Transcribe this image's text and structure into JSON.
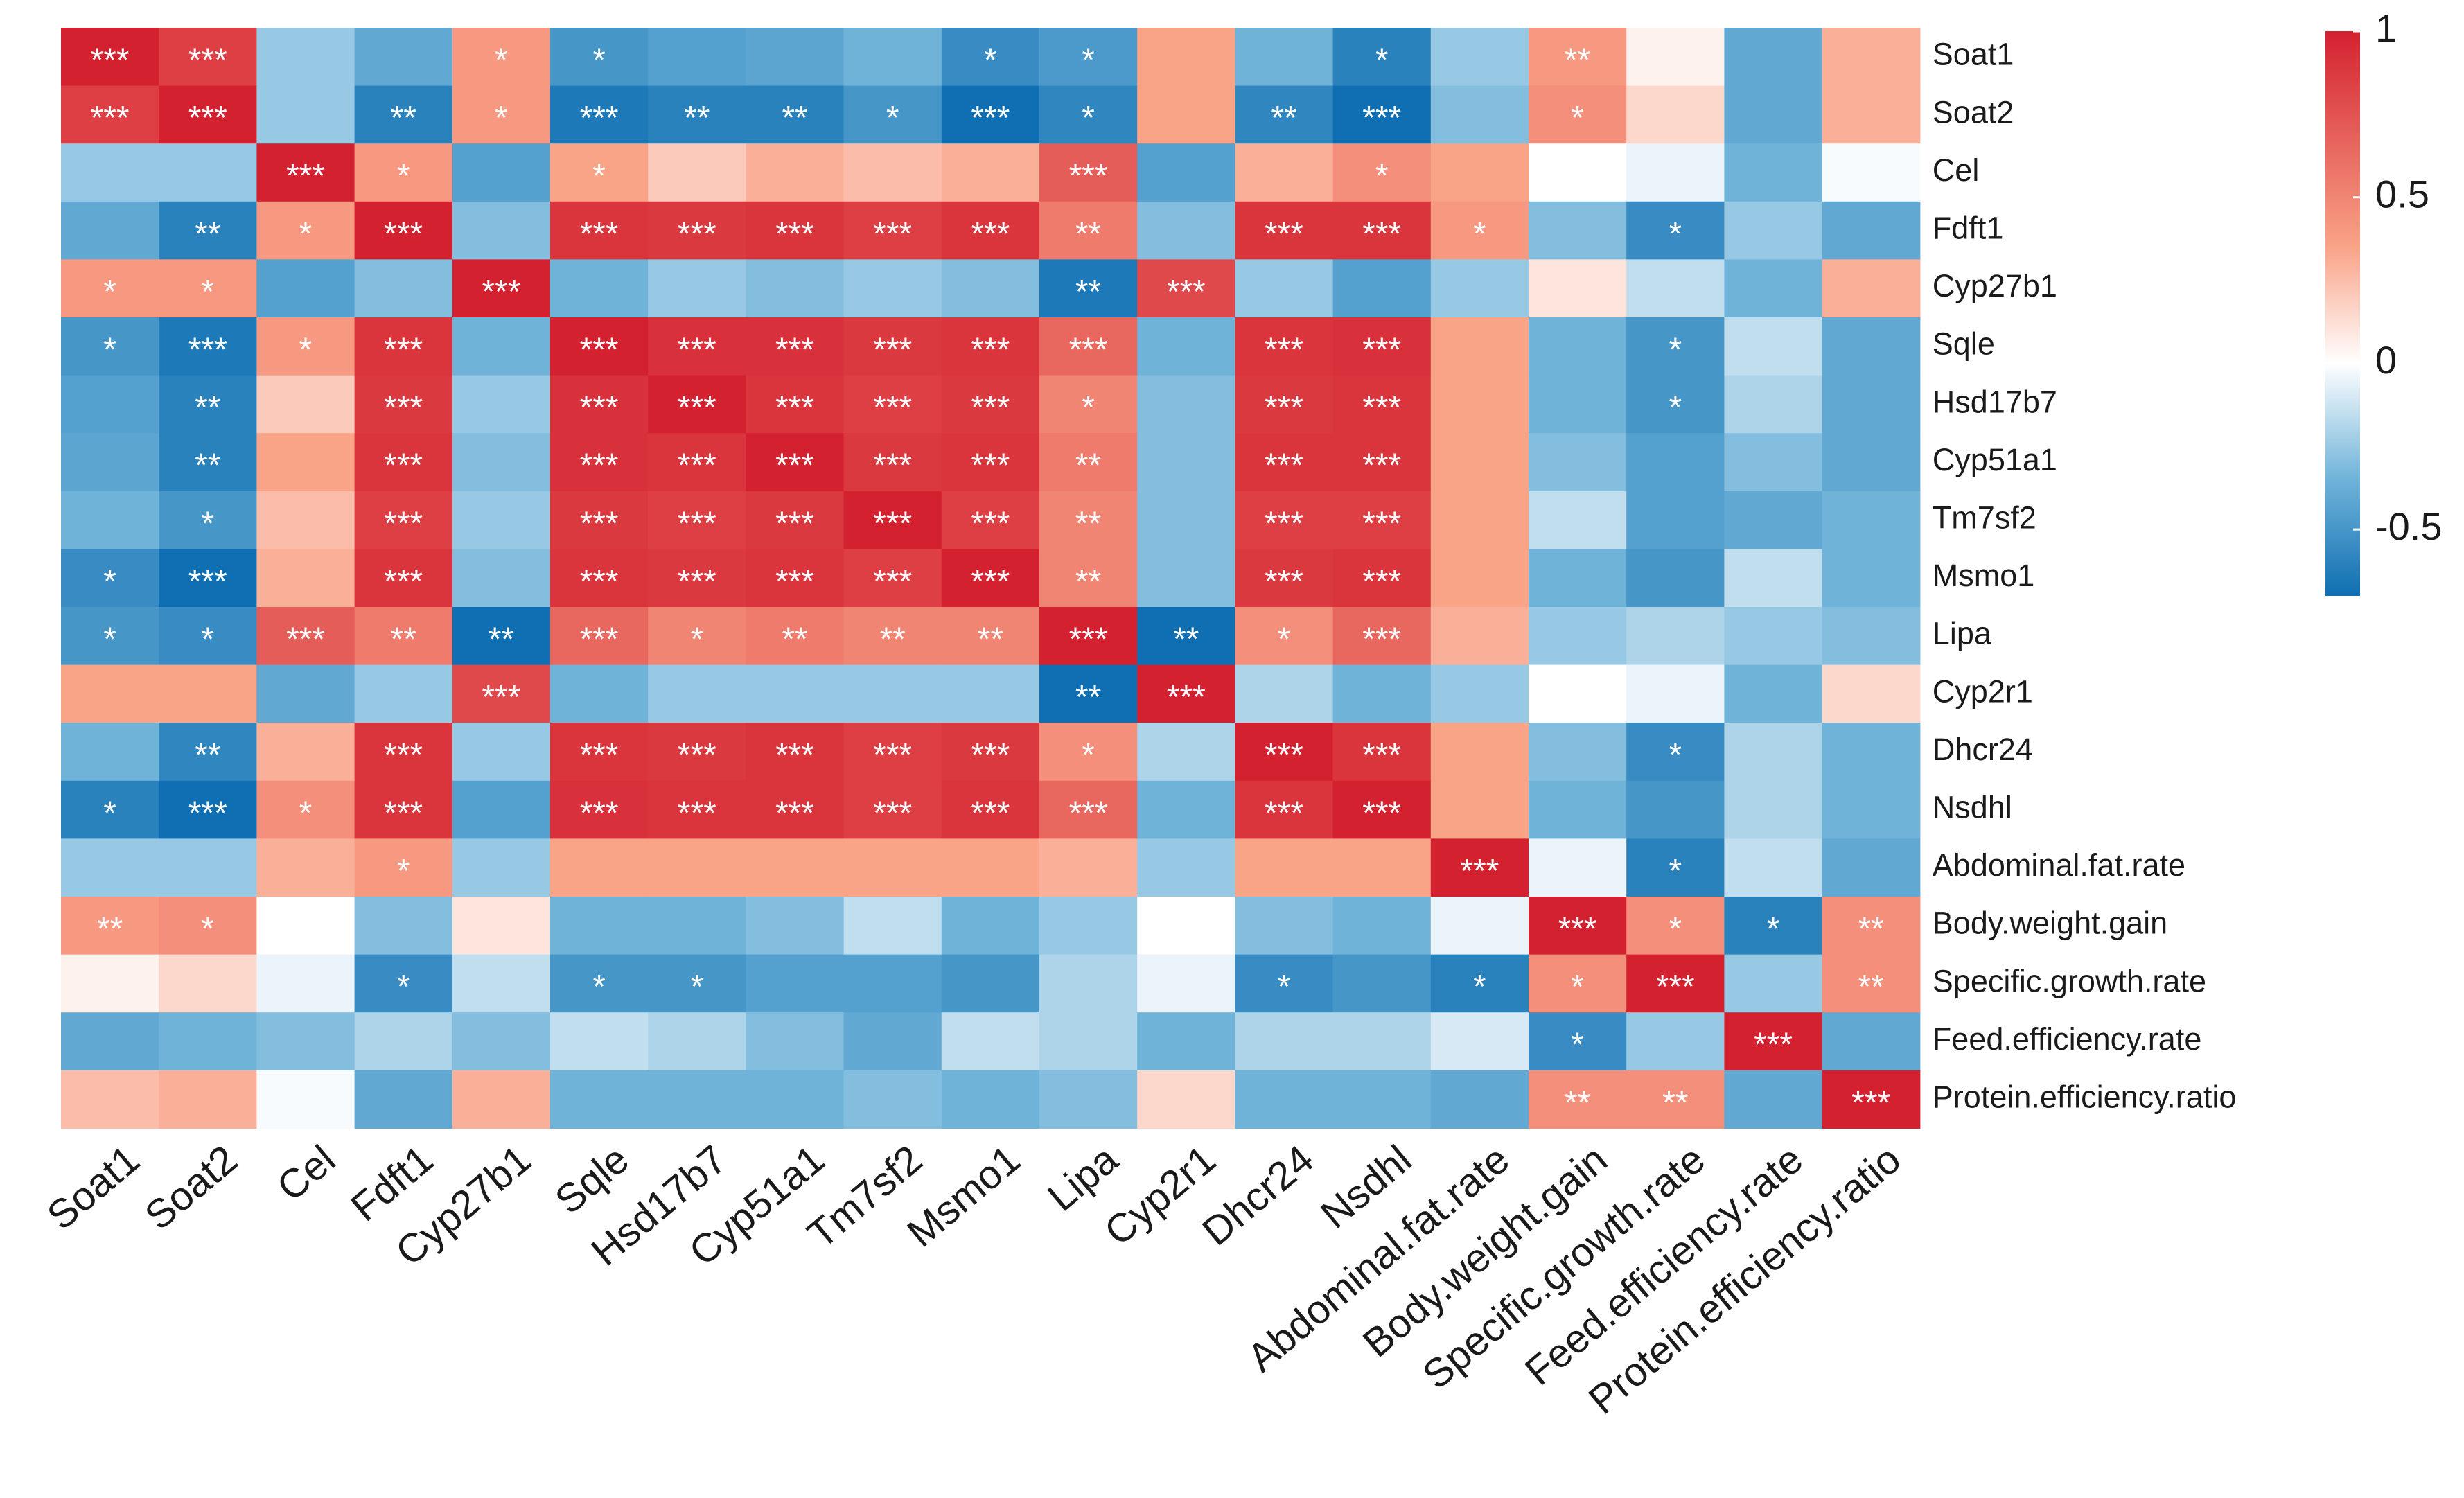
{
  "chart_data": {
    "type": "heatmap",
    "title": "",
    "rows": [
      "Soat1",
      "Soat2",
      "Cel",
      "Fdft1",
      "Cyp27b1",
      "Sqle",
      "Hsd17b7",
      "Cyp51a1",
      "Tm7sf2",
      "Msmo1",
      "Lipa",
      "Cyp2r1",
      "Dhcr24",
      "Nsdhl",
      "Abdominal.fat.rate",
      "Body.weight.gain",
      "Specific.growth.rate",
      "Feed.efficiency.rate",
      "Protein.efficiency.ratio"
    ],
    "columns": [
      "Soat1",
      "Soat2",
      "Cel",
      "Fdft1",
      "Cyp27b1",
      "Sqle",
      "Hsd17b7",
      "Cyp51a1",
      "Tm7sf2",
      "Msmo1",
      "Lipa",
      "Cyp2r1",
      "Dhcr24",
      "Nsdhl",
      "Abdominal.fat.rate",
      "Body.weight.gain",
      "Specific.growth.rate",
      "Feed.efficiency.rate",
      "Protein.efficiency.ratio"
    ],
    "values": [
      [
        1.0,
        0.85,
        -0.25,
        -0.4,
        0.4,
        -0.5,
        -0.45,
        -0.42,
        -0.35,
        -0.55,
        -0.48,
        0.35,
        -0.35,
        -0.6,
        -0.25,
        0.4,
        0.05,
        -0.4,
        0.3
      ],
      [
        0.85,
        1.0,
        -0.25,
        -0.6,
        0.4,
        -0.65,
        -0.6,
        -0.6,
        -0.5,
        -0.7,
        -0.58,
        0.35,
        -0.58,
        -0.7,
        -0.3,
        0.45,
        0.15,
        -0.4,
        0.3
      ],
      [
        -0.25,
        -0.25,
        1.0,
        0.4,
        -0.45,
        0.35,
        0.2,
        0.3,
        0.25,
        0.3,
        0.7,
        -0.45,
        0.3,
        0.45,
        0.35,
        0.0,
        -0.05,
        -0.35,
        -0.02
      ],
      [
        -0.4,
        -0.6,
        0.4,
        1.0,
        -0.3,
        0.9,
        0.88,
        0.9,
        0.85,
        0.9,
        0.55,
        -0.3,
        0.9,
        0.9,
        0.4,
        -0.3,
        -0.55,
        -0.25,
        -0.4
      ],
      [
        0.4,
        0.4,
        -0.45,
        -0.3,
        1.0,
        -0.35,
        -0.25,
        -0.3,
        -0.25,
        -0.3,
        -0.65,
        0.8,
        -0.25,
        -0.45,
        -0.25,
        0.1,
        -0.15,
        -0.35,
        0.3
      ],
      [
        -0.5,
        -0.65,
        0.4,
        0.9,
        -0.35,
        1.0,
        0.92,
        0.92,
        0.88,
        0.9,
        0.65,
        -0.35,
        0.9,
        0.92,
        0.35,
        -0.35,
        -0.5,
        -0.15,
        -0.4
      ],
      [
        -0.45,
        -0.6,
        0.2,
        0.88,
        -0.25,
        0.92,
        1.0,
        0.9,
        0.85,
        0.88,
        0.5,
        -0.3,
        0.88,
        0.9,
        0.35,
        -0.35,
        -0.5,
        -0.2,
        -0.4
      ],
      [
        -0.42,
        -0.6,
        0.35,
        0.9,
        -0.3,
        0.92,
        0.9,
        1.0,
        0.88,
        0.9,
        0.55,
        -0.3,
        0.9,
        0.9,
        0.35,
        -0.3,
        -0.45,
        -0.3,
        -0.4
      ],
      [
        -0.35,
        -0.5,
        0.25,
        0.85,
        -0.25,
        0.88,
        0.85,
        0.88,
        1.0,
        0.85,
        0.5,
        -0.3,
        0.85,
        0.85,
        0.35,
        -0.15,
        -0.45,
        -0.4,
        -0.35
      ],
      [
        -0.55,
        -0.7,
        0.3,
        0.9,
        -0.3,
        0.9,
        0.88,
        0.9,
        0.85,
        1.0,
        0.5,
        -0.3,
        0.88,
        0.9,
        0.35,
        -0.35,
        -0.5,
        -0.15,
        -0.35
      ],
      [
        -0.5,
        -0.55,
        0.7,
        0.55,
        -0.7,
        0.65,
        0.5,
        0.55,
        0.5,
        0.5,
        1.0,
        -0.7,
        0.45,
        0.65,
        0.3,
        -0.25,
        -0.2,
        -0.25,
        -0.3
      ],
      [
        0.35,
        0.35,
        -0.4,
        -0.25,
        0.8,
        -0.35,
        -0.25,
        -0.25,
        -0.25,
        -0.25,
        -0.7,
        1.0,
        -0.2,
        -0.35,
        -0.25,
        0.0,
        -0.05,
        -0.35,
        0.15
      ],
      [
        -0.35,
        -0.58,
        0.3,
        0.9,
        -0.25,
        0.9,
        0.88,
        0.9,
        0.85,
        0.88,
        0.45,
        -0.2,
        1.0,
        0.9,
        0.35,
        -0.3,
        -0.55,
        -0.2,
        -0.35
      ],
      [
        -0.6,
        -0.7,
        0.45,
        0.9,
        -0.45,
        0.92,
        0.9,
        0.9,
        0.85,
        0.9,
        0.65,
        -0.35,
        0.9,
        1.0,
        0.35,
        -0.35,
        -0.5,
        -0.2,
        -0.35
      ],
      [
        -0.25,
        -0.25,
        0.3,
        0.4,
        -0.25,
        0.35,
        0.35,
        0.35,
        0.35,
        0.35,
        0.3,
        -0.25,
        0.35,
        0.35,
        1.0,
        -0.05,
        -0.6,
        -0.15,
        -0.4
      ],
      [
        0.4,
        0.45,
        0.0,
        -0.3,
        0.1,
        -0.35,
        -0.35,
        -0.3,
        -0.15,
        -0.35,
        -0.25,
        0.0,
        -0.3,
        -0.35,
        -0.05,
        1.0,
        0.45,
        -0.6,
        0.45
      ],
      [
        0.05,
        0.15,
        -0.05,
        -0.55,
        -0.15,
        -0.5,
        -0.5,
        -0.45,
        -0.45,
        -0.5,
        -0.2,
        -0.05,
        -0.55,
        -0.5,
        -0.6,
        0.45,
        1.0,
        -0.25,
        0.45
      ],
      [
        -0.4,
        -0.35,
        -0.3,
        -0.2,
        -0.3,
        -0.15,
        -0.2,
        -0.3,
        -0.4,
        -0.15,
        -0.2,
        -0.35,
        -0.2,
        -0.2,
        -0.1,
        -0.55,
        -0.25,
        1.0,
        -0.4
      ],
      [
        0.25,
        0.3,
        -0.02,
        -0.4,
        0.3,
        -0.35,
        -0.35,
        -0.35,
        -0.3,
        -0.35,
        -0.3,
        0.15,
        -0.35,
        -0.35,
        -0.4,
        0.45,
        0.45,
        -0.4,
        1.0
      ]
    ],
    "significance": [
      [
        "***",
        "***",
        "",
        "",
        "*",
        "*",
        "",
        "",
        "",
        "*",
        "*",
        "",
        "",
        "*",
        "",
        "**",
        "",
        "",
        ""
      ],
      [
        "***",
        "***",
        "",
        "**",
        "*",
        "***",
        "**",
        "**",
        "*",
        "***",
        "*",
        "",
        "**",
        "***",
        "",
        "*",
        "",
        "",
        ""
      ],
      [
        "",
        "",
        "***",
        "*",
        "",
        "*",
        "",
        "",
        "",
        "",
        "***",
        "",
        "",
        "*",
        "",
        "",
        "",
        "",
        ""
      ],
      [
        "",
        "**",
        "*",
        "***",
        "",
        "***",
        "***",
        "***",
        "***",
        "***",
        "**",
        "",
        "***",
        "***",
        "*",
        "",
        "*",
        "",
        ""
      ],
      [
        "*",
        "*",
        "",
        "",
        "***",
        "",
        "",
        "",
        "",
        "",
        "**",
        "***",
        "",
        "",
        "",
        "",
        "",
        "",
        ""
      ],
      [
        "*",
        "***",
        "*",
        "***",
        "",
        "***",
        "***",
        "***",
        "***",
        "***",
        "***",
        "",
        "***",
        "***",
        "",
        "",
        "*",
        "",
        ""
      ],
      [
        "",
        "**",
        "",
        "***",
        "",
        "***",
        "***",
        "***",
        "***",
        "***",
        "*",
        "",
        "***",
        "***",
        "",
        "",
        "*",
        "",
        ""
      ],
      [
        "",
        "**",
        "",
        "***",
        "",
        "***",
        "***",
        "***",
        "***",
        "***",
        "**",
        "",
        "***",
        "***",
        "",
        "",
        "",
        "",
        ""
      ],
      [
        "",
        "*",
        "",
        "***",
        "",
        "***",
        "***",
        "***",
        "***",
        "***",
        "**",
        "",
        "***",
        "***",
        "",
        "",
        "",
        "",
        ""
      ],
      [
        "*",
        "***",
        "",
        "***",
        "",
        "***",
        "***",
        "***",
        "***",
        "***",
        "**",
        "",
        "***",
        "***",
        "",
        "",
        "",
        "",
        ""
      ],
      [
        "*",
        "*",
        "***",
        "**",
        "**",
        "***",
        "*",
        "**",
        "**",
        "**",
        "***",
        "**",
        "*",
        "***",
        "",
        "",
        "",
        "",
        ""
      ],
      [
        "",
        "",
        "",
        "",
        "***",
        "",
        "",
        "",
        "",
        "",
        "**",
        "***",
        "",
        "",
        "",
        "",
        "",
        "",
        ""
      ],
      [
        "",
        "**",
        "",
        "***",
        "",
        "***",
        "***",
        "***",
        "***",
        "***",
        "*",
        "",
        "***",
        "***",
        "",
        "",
        "*",
        "",
        ""
      ],
      [
        "*",
        "***",
        "*",
        "***",
        "",
        "***",
        "***",
        "***",
        "***",
        "***",
        "***",
        "",
        "***",
        "***",
        "",
        "",
        "",
        "",
        ""
      ],
      [
        "",
        "",
        "",
        "*",
        "",
        "",
        "",
        "",
        "",
        "",
        "",
        "",
        "",
        "",
        "***",
        "",
        "*",
        "",
        ""
      ],
      [
        "**",
        "*",
        "",
        "",
        "",
        "",
        "",
        "",
        "",
        "",
        "",
        "",
        "",
        "",
        "",
        "***",
        "*",
        "*",
        "**"
      ],
      [
        "",
        "",
        "",
        "*",
        "",
        "*",
        "*",
        "",
        "",
        "",
        "",
        "",
        "*",
        "",
        "*",
        "*",
        "***",
        "",
        "**"
      ],
      [
        "",
        "",
        "",
        "",
        "",
        "",
        "",
        "",
        "",
        "",
        "",
        "",
        "",
        "",
        "",
        "*",
        "",
        "***",
        ""
      ],
      [
        "",
        "",
        "",
        "",
        "",
        "",
        "",
        "",
        "",
        "",
        "",
        "",
        "",
        "",
        "",
        "**",
        "**",
        "",
        "***"
      ]
    ],
    "color_scale": {
      "min": -0.7,
      "max": 1,
      "stops": [
        {
          "value": -0.7,
          "color": "#0f6fb2"
        },
        {
          "value": -0.35,
          "color": "#6fb3d9"
        },
        {
          "value": 0,
          "color": "#ffffff"
        },
        {
          "value": 0.35,
          "color": "#f9a387"
        },
        {
          "value": 1,
          "color": "#d42130"
        }
      ]
    },
    "legend": {
      "ticks": [
        1,
        0.5,
        0,
        -0.5
      ],
      "tick_labels": [
        "1",
        "0.5",
        "0",
        "-0.5"
      ]
    }
  }
}
